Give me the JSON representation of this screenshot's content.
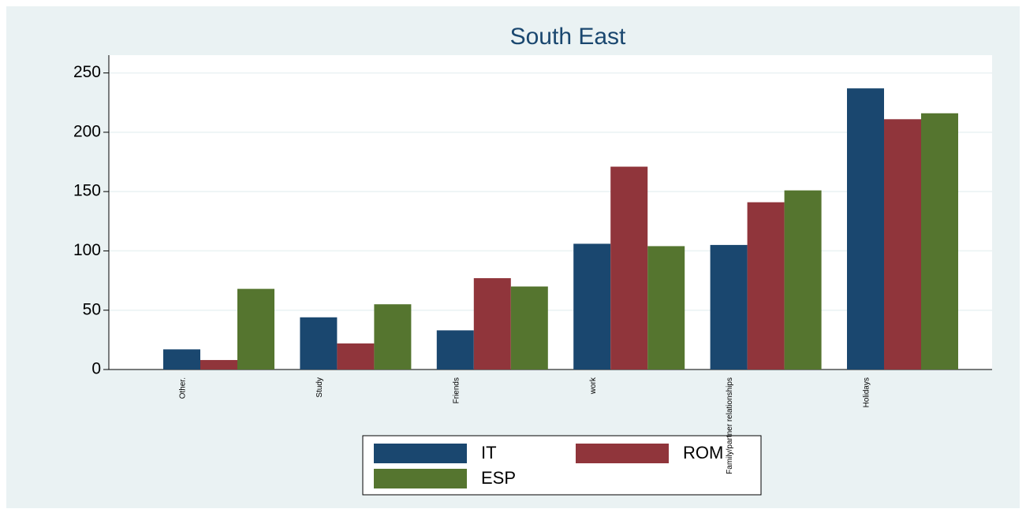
{
  "chart_data": {
    "type": "bar",
    "title": "South East",
    "categories": [
      "Other.",
      "Study",
      "Friends",
      "work",
      "Family/partner relationships",
      "Holidays"
    ],
    "series": [
      {
        "name": "IT",
        "color": "#1a476f",
        "values": [
          17,
          44,
          33,
          106,
          105,
          237
        ]
      },
      {
        "name": "ROM",
        "color": "#90353b",
        "values": [
          8,
          22,
          77,
          171,
          141,
          211
        ]
      },
      {
        "name": "ESP",
        "color": "#55752f",
        "values": [
          68,
          55,
          70,
          104,
          151,
          216
        ]
      }
    ],
    "ylim": [
      0,
      265
    ],
    "yticks": [
      0,
      50,
      100,
      150,
      200,
      250
    ],
    "grid": true
  }
}
